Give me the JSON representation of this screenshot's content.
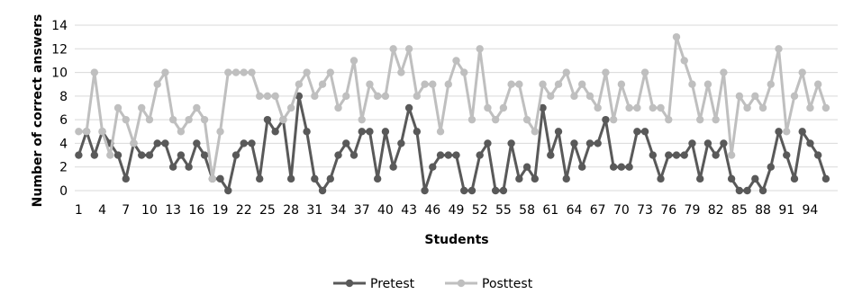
{
  "chart_data": {
    "type": "line",
    "title": "",
    "xlabel": "Students",
    "ylabel": "Number of correct answers",
    "ylim": [
      0,
      14
    ],
    "yticks": [
      0,
      2,
      4,
      6,
      8,
      10,
      12,
      14
    ],
    "xticks": [
      1,
      4,
      7,
      10,
      13,
      16,
      19,
      22,
      25,
      28,
      31,
      34,
      37,
      40,
      43,
      46,
      49,
      52,
      55,
      58,
      61,
      64,
      67,
      70,
      73,
      76,
      79,
      82,
      85,
      88,
      91,
      94
    ],
    "grid": "horizontal",
    "legend": "bottom",
    "x_range": [
      1,
      97
    ],
    "series": [
      {
        "name": "Pretest",
        "color": "#595959",
        "values": [
          3,
          5,
          3,
          5,
          4,
          3,
          1,
          4,
          3,
          3,
          4,
          4,
          2,
          3,
          2,
          4,
          3,
          1,
          1,
          0,
          3,
          4,
          4,
          1,
          6,
          5,
          6,
          1,
          8,
          5,
          1,
          0,
          1,
          3,
          4,
          3,
          5,
          5,
          1,
          5,
          2,
          4,
          7,
          5,
          0,
          2,
          3,
          3,
          3,
          0,
          0,
          3,
          4,
          0,
          0,
          4,
          1,
          2,
          1,
          7,
          3,
          5,
          1,
          4,
          2,
          4,
          4,
          6,
          2,
          2,
          2,
          5,
          5,
          3,
          1,
          3,
          3,
          3,
          4,
          1,
          4,
          3,
          4,
          1,
          0,
          0,
          1,
          0,
          2,
          5,
          3,
          1,
          5,
          4,
          3,
          1
        ]
      },
      {
        "name": "Posttest",
        "color": "#bfbfbf",
        "values": [
          5,
          5,
          10,
          5,
          3,
          7,
          6,
          4,
          7,
          6,
          9,
          10,
          6,
          5,
          6,
          7,
          6,
          1,
          5,
          10,
          10,
          10,
          10,
          8,
          8,
          8,
          6,
          7,
          9,
          10,
          8,
          9,
          10,
          7,
          8,
          11,
          6,
          9,
          8,
          8,
          12,
          10,
          12,
          8,
          9,
          9,
          5,
          9,
          11,
          10,
          6,
          12,
          7,
          6,
          7,
          9,
          9,
          6,
          5,
          9,
          8,
          9,
          10,
          8,
          9,
          8,
          7,
          10,
          6,
          9,
          7,
          7,
          10,
          7,
          7,
          6,
          13,
          11,
          9,
          6,
          9,
          6,
          10,
          3,
          8,
          7,
          8,
          7,
          9,
          12,
          5,
          8,
          10,
          7,
          9,
          7
        ]
      }
    ]
  }
}
